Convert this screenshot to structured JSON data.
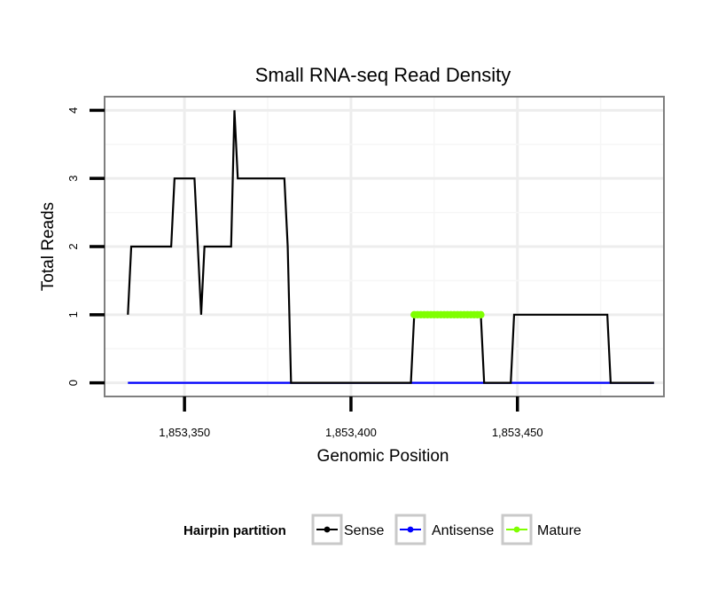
{
  "chart_data": {
    "type": "line",
    "title": "Small RNA-seq Read Density",
    "xlabel": "Genomic Position",
    "ylabel": "Total Reads",
    "xlim": [
      1853326,
      1853494
    ],
    "ylim": [
      -0.2,
      4.2
    ],
    "x_ticks": [
      {
        "value": 1853350,
        "label": "1,853,350"
      },
      {
        "value": 1853400,
        "label": "1,853,400"
      },
      {
        "value": 1853450,
        "label": "1,853,450"
      }
    ],
    "y_ticks": [
      {
        "value": 0,
        "label": "0"
      },
      {
        "value": 1,
        "label": "1"
      },
      {
        "value": 2,
        "label": "2"
      },
      {
        "value": 3,
        "label": "3"
      },
      {
        "value": 4,
        "label": "4"
      }
    ],
    "grid": true,
    "legend": {
      "title": "Hairpin partition",
      "position": "bottom",
      "entries": [
        {
          "name": "Sense",
          "color": "#000000"
        },
        {
          "name": "Antisense",
          "color": "#0000ff"
        },
        {
          "name": "Mature",
          "color": "#7fff00"
        }
      ]
    },
    "series": [
      {
        "name": "Sense",
        "color": "#000000",
        "style": "line",
        "x": [
          1853333,
          1853334,
          1853346,
          1853347,
          1853353,
          1853354,
          1853355,
          1853356,
          1853357,
          1853364,
          1853365,
          1853366,
          1853368,
          1853369,
          1853380,
          1853381,
          1853382,
          1853418,
          1853419,
          1853439,
          1853440,
          1853448,
          1853449,
          1853477,
          1853478,
          1853491
        ],
        "y": [
          1,
          2,
          2,
          3,
          3,
          2,
          1,
          2,
          2,
          2,
          4,
          3,
          3,
          3,
          3,
          2,
          0,
          0,
          1,
          1,
          0,
          0,
          1,
          1,
          0,
          0
        ]
      },
      {
        "name": "Antisense",
        "color": "#0000ff",
        "style": "line",
        "x": [
          1853333,
          1853491
        ],
        "y": [
          0,
          0
        ]
      },
      {
        "name": "Mature",
        "color": "#7fff00",
        "style": "points",
        "x": [
          1853419,
          1853420,
          1853421,
          1853422,
          1853423,
          1853424,
          1853425,
          1853426,
          1853427,
          1853428,
          1853429,
          1853430,
          1853431,
          1853432,
          1853433,
          1853434,
          1853435,
          1853436,
          1853437,
          1853438,
          1853439
        ],
        "y": [
          1,
          1,
          1,
          1,
          1,
          1,
          1,
          1,
          1,
          1,
          1,
          1,
          1,
          1,
          1,
          1,
          1,
          1,
          1,
          1,
          1
        ]
      }
    ]
  }
}
